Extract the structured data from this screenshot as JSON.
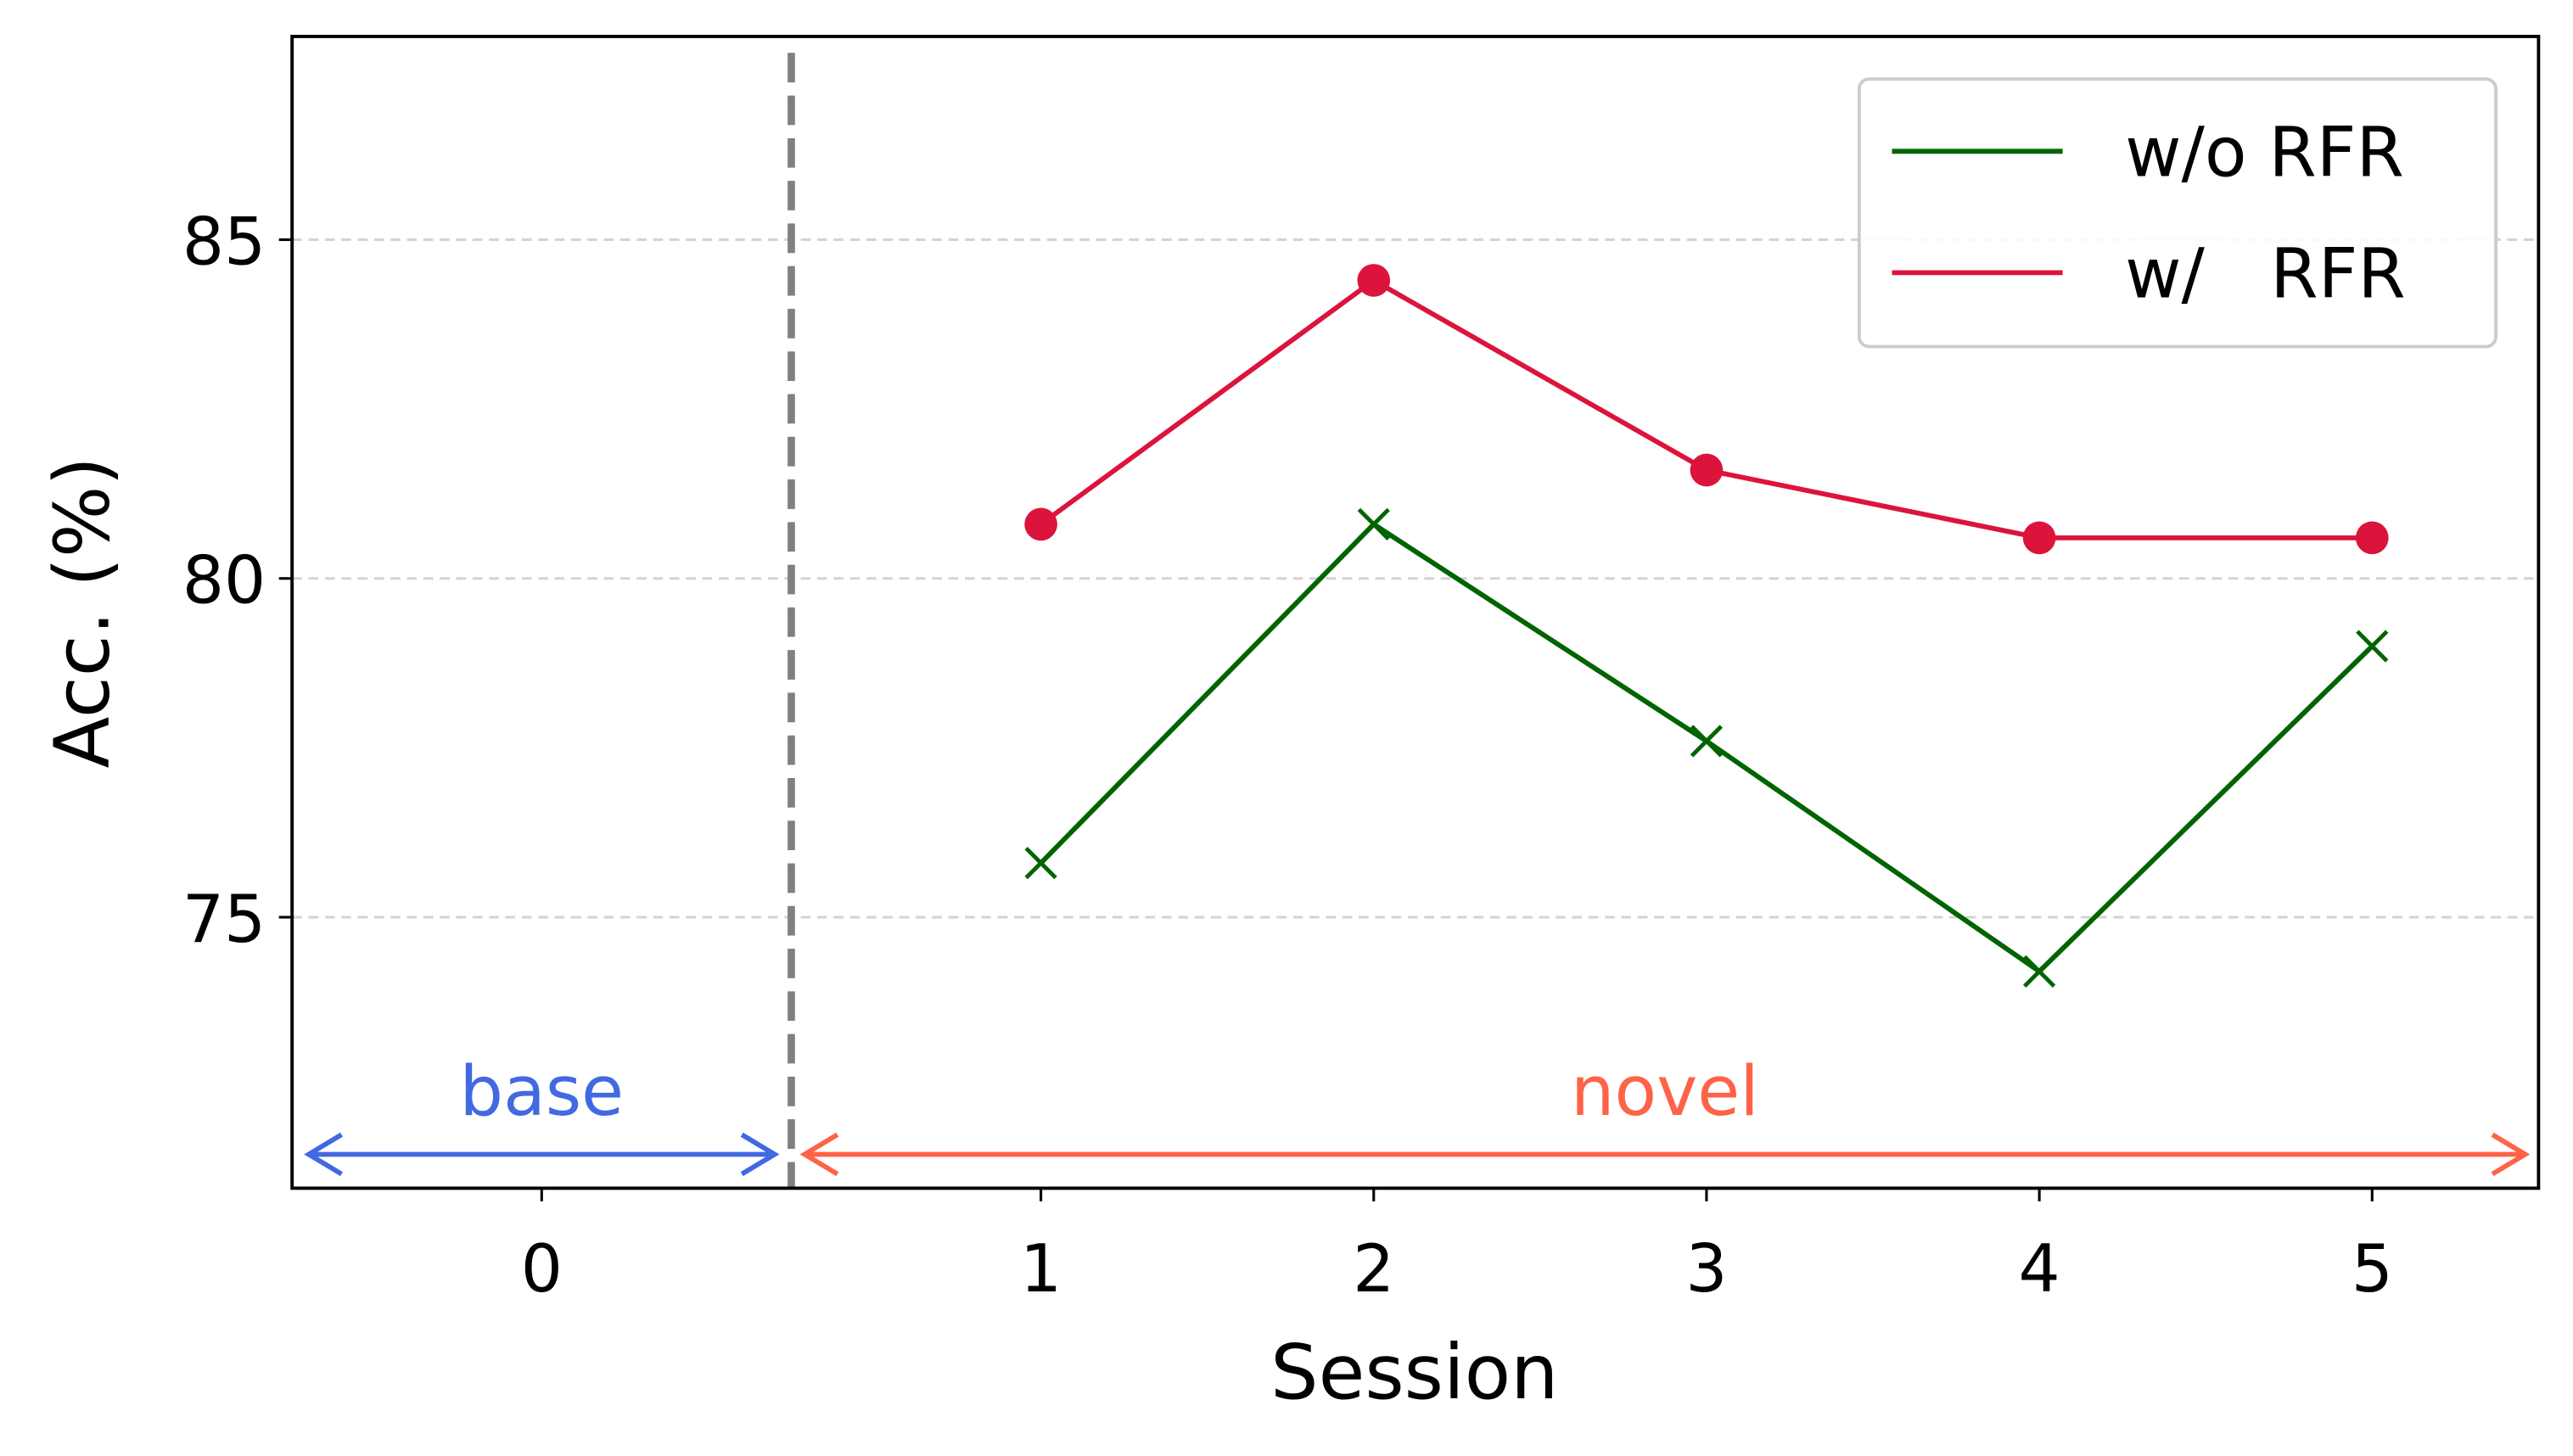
{
  "chart_data": {
    "type": "line",
    "x": [
      1,
      2,
      3,
      4,
      5
    ],
    "xlabel": "Session",
    "ylabel": "Acc. (%)",
    "xlim": [
      -1.25,
      5.5
    ],
    "xticks": [
      {
        "value": -0.5,
        "label": "0"
      },
      1,
      2,
      3,
      4,
      5
    ],
    "ylim": [
      71,
      88
    ],
    "yticks": [
      75,
      80,
      85
    ],
    "grid": true,
    "legend": "upper right",
    "series": [
      {
        "name": "w/o RFR",
        "color": "#006400",
        "marker": "x",
        "values": [
          75.8,
          80.8,
          77.6,
          74.2,
          79.0
        ]
      },
      {
        "name": "w/   RFR",
        "color": "#dc143c",
        "marker": "o",
        "values": [
          80.8,
          84.4,
          81.6,
          80.6,
          80.6
        ]
      }
    ],
    "annotations": [
      {
        "text": "base",
        "color": "#4169e1"
      },
      {
        "text": "novel",
        "color": "#ff6347"
      }
    ]
  }
}
